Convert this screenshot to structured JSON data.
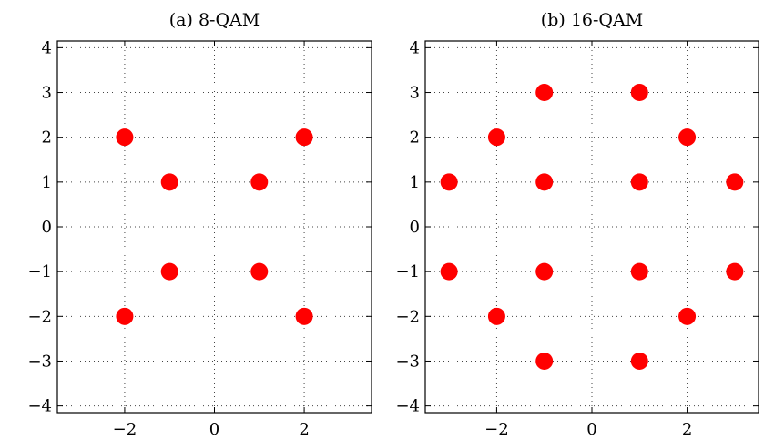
{
  "chart_data": [
    {
      "type": "scatter",
      "title": "(a) 8-QAM",
      "xlabel": "",
      "ylabel": "",
      "xlim": [
        -3.5,
        3.5
      ],
      "ylim": [
        -4.15,
        4.15
      ],
      "xticks": [
        -2,
        0,
        2
      ],
      "xtick_labels": [
        "−2",
        "0",
        "2"
      ],
      "yticks": [
        4,
        3,
        2,
        1,
        0,
        -1,
        -2,
        -3,
        -4
      ],
      "ytick_labels": [
        "4",
        "3",
        "2",
        "1",
        "0",
        "−1",
        "−2",
        "−3",
        "−4"
      ],
      "grid": true,
      "grid_style": "dotted",
      "marker_color": "#ff0000",
      "points": [
        {
          "x": -2,
          "y": 2
        },
        {
          "x": 2,
          "y": 2
        },
        {
          "x": -1,
          "y": 1
        },
        {
          "x": 1,
          "y": 1
        },
        {
          "x": -1,
          "y": -1
        },
        {
          "x": 1,
          "y": -1
        },
        {
          "x": -2,
          "y": -2
        },
        {
          "x": 2,
          "y": -2
        }
      ]
    },
    {
      "type": "scatter",
      "title": "(b) 16-QAM",
      "xlabel": "",
      "ylabel": "",
      "xlim": [
        -3.5,
        3.5
      ],
      "ylim": [
        -4.15,
        4.15
      ],
      "xticks": [
        -2,
        0,
        2
      ],
      "xtick_labels": [
        "−2",
        "0",
        "2"
      ],
      "yticks": [
        4,
        3,
        2,
        1,
        0,
        -1,
        -2,
        -3,
        -4
      ],
      "ytick_labels": [
        "4",
        "3",
        "2",
        "1",
        "0",
        "−1",
        "−2",
        "−3",
        "−4"
      ],
      "grid": true,
      "grid_style": "dotted",
      "marker_color": "#ff0000",
      "points": [
        {
          "x": -1,
          "y": 3
        },
        {
          "x": 1,
          "y": 3
        },
        {
          "x": -2,
          "y": 2
        },
        {
          "x": 2,
          "y": 2
        },
        {
          "x": -3,
          "y": 1
        },
        {
          "x": -1,
          "y": 1
        },
        {
          "x": 1,
          "y": 1
        },
        {
          "x": 3,
          "y": 1
        },
        {
          "x": -3,
          "y": -1
        },
        {
          "x": -1,
          "y": -1
        },
        {
          "x": 1,
          "y": -1
        },
        {
          "x": 3,
          "y": -1
        },
        {
          "x": -2,
          "y": -2
        },
        {
          "x": 2,
          "y": -2
        },
        {
          "x": -1,
          "y": -3
        },
        {
          "x": 1,
          "y": -3
        }
      ]
    }
  ]
}
